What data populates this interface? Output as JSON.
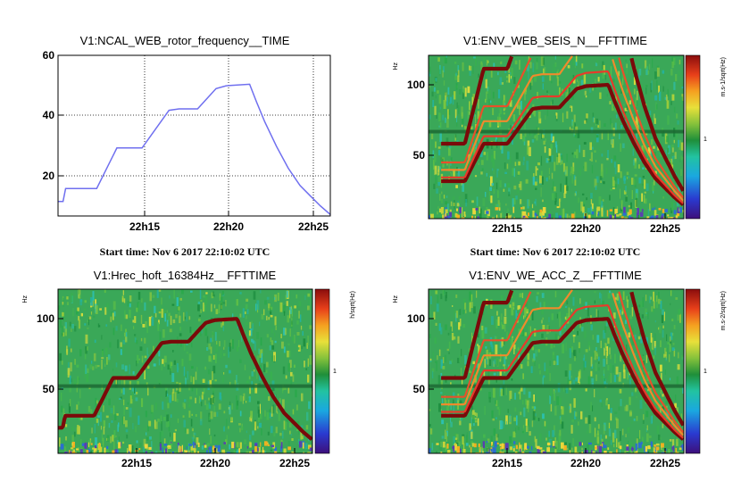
{
  "chart_data": [
    {
      "id": "p1",
      "type": "line",
      "title": "V1:NCAL_WEB_rotor_frequency__TIME",
      "start_time": "Start time: Nov 6 2017 22:10:02 UTC",
      "xlabel": "",
      "ylabel": "",
      "x_unit": "minutes after 22:10:02 UTC",
      "xlim": [
        0,
        16.2
      ],
      "ylim": [
        4.5,
        60
      ],
      "x_ticks": [
        {
          "x": 4.97,
          "label": "22h15"
        },
        {
          "x": 9.97,
          "label": "22h20"
        },
        {
          "x": 14.97,
          "label": "22h25"
        }
      ],
      "y_ticks": [
        {
          "y": 20,
          "label": "20"
        },
        {
          "y": 40,
          "label": "40"
        },
        {
          "y": 60,
          "label": "60"
        }
      ],
      "grid": true,
      "line_color": "#6f6fef",
      "series": [
        {
          "name": "rotor frequency",
          "x": [
            0,
            0.3,
            0.45,
            2.3,
            3.5,
            5.0,
            6.6,
            7.2,
            8.3,
            9.4,
            10.0,
            11.4,
            11.8,
            12.3,
            13.0,
            13.7,
            14.4,
            15.0,
            15.6,
            16.2
          ],
          "y": [
            9.5,
            9.5,
            14,
            14,
            28,
            28,
            41,
            41.5,
            41.5,
            48.5,
            49.5,
            50,
            44,
            37,
            28.5,
            21,
            15,
            11.5,
            8,
            5
          ]
        }
      ]
    },
    {
      "id": "p2",
      "type": "heatmap",
      "title": "V1:ENV_WEB_SEIS_N__FFTTIME",
      "start_time": "Start time: Nov 6 2017 22:10:02 UTC",
      "ylabel": "Hz",
      "colorbar_label": "m.s-1/sqrt(Hz)",
      "colorbar_tick": "1",
      "xlim": [
        0,
        16.2
      ],
      "ylim": [
        0,
        122
      ],
      "x_ticks": [
        {
          "x": 4.97,
          "label": "22h15"
        },
        {
          "x": 9.97,
          "label": "22h20"
        },
        {
          "x": 14.97,
          "label": "22h25"
        }
      ],
      "y_ticks": [
        {
          "y": 50,
          "label": "50"
        },
        {
          "y": 100,
          "label": "100"
        }
      ],
      "horizontal_band_hz": 65,
      "harmonics": [
        2,
        4
      ],
      "side_lines": [
        3,
        2.6,
        2.2
      ],
      "warm_start_min": 0.8
    },
    {
      "id": "p3",
      "type": "heatmap",
      "title": "V1:Hrec_hoft_16384Hz__FFTTIME",
      "ylabel": "Hz",
      "colorbar_label": "h/sqrt(Hz)",
      "colorbar_tick": "1",
      "xlim": [
        0,
        16.2
      ],
      "ylim": [
        0,
        122
      ],
      "x_ticks": [
        {
          "x": 4.97,
          "label": "22h15"
        },
        {
          "x": 9.97,
          "label": "22h20"
        },
        {
          "x": 14.97,
          "label": "22h25"
        }
      ],
      "y_ticks": [
        {
          "y": 50,
          "label": "50"
        },
        {
          "y": 100,
          "label": "100"
        }
      ],
      "horizontal_band_hz": 50,
      "harmonics": [
        2
      ],
      "side_lines": [],
      "warm_start_min": 0
    },
    {
      "id": "p4",
      "type": "heatmap",
      "title": "V1:ENV_WE_ACC_Z__FFTTIME",
      "ylabel": "Hz",
      "colorbar_label": "m.s-2/sqrt(Hz)",
      "colorbar_tick": "1",
      "xlim": [
        0,
        16.2
      ],
      "ylim": [
        0,
        122
      ],
      "x_ticks": [
        {
          "x": 4.97,
          "label": "22h15"
        },
        {
          "x": 9.97,
          "label": "22h20"
        },
        {
          "x": 14.97,
          "label": "22h25"
        }
      ],
      "y_ticks": [
        {
          "y": 50,
          "label": "50"
        },
        {
          "y": 100,
          "label": "100"
        }
      ],
      "horizontal_band_hz": 50,
      "harmonics": [
        2,
        4
      ],
      "side_lines": [
        3,
        2.6,
        2.2
      ],
      "warm_start_min": 0.8
    }
  ]
}
